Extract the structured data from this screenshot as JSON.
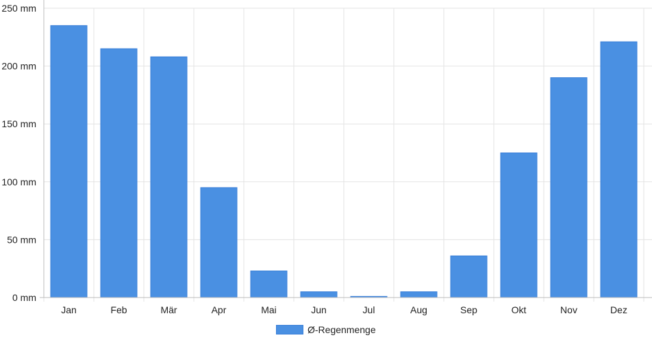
{
  "chart_data": {
    "type": "bar",
    "categories": [
      "Jan",
      "Feb",
      "Mär",
      "Apr",
      "Mai",
      "Jun",
      "Jul",
      "Aug",
      "Sep",
      "Okt",
      "Nov",
      "Dez"
    ],
    "series": [
      {
        "name": "Ø-Regenmenge",
        "values": [
          235,
          215,
          208,
          95,
          23,
          5,
          1,
          5,
          36,
          125,
          190,
          221
        ]
      }
    ],
    "y_ticks": [
      "0 mm",
      "50 mm",
      "100 mm",
      "150 mm",
      "200 mm",
      "250 mm"
    ],
    "ylim": [
      0,
      250
    ],
    "grid": true,
    "legend_position": "bottom",
    "colors": {
      "bar": "#4a90e2",
      "bar_border": "#3a7fd8",
      "grid": "#e3e3e3",
      "axis": "#bdbdbd"
    }
  }
}
